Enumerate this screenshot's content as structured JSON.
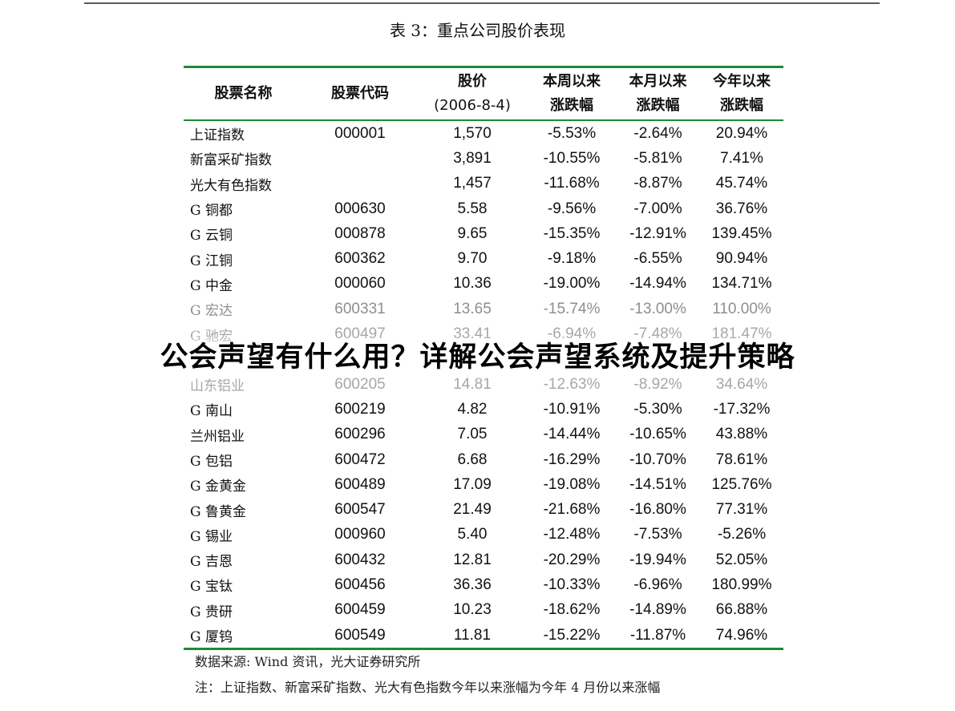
{
  "doc": {
    "table_title": "表 3：重点公司股价表现",
    "headers": {
      "name": "股票名称",
      "code": "股票代码",
      "price_l1": "股价",
      "price_l2": "(2006-8-4)",
      "week_l1": "本周以来",
      "week_l2": "涨跌幅",
      "month_l1": "本月以来",
      "month_l2": "涨跌幅",
      "year_l1": "今年以来",
      "year_l2": "涨跌幅"
    },
    "rows": [
      [
        "上证指数",
        "000001",
        "1,570",
        "-5.53%",
        "-2.64%",
        "20.94%"
      ],
      [
        "新富采矿指数",
        "",
        "3,891",
        "-10.55%",
        "-5.81%",
        "7.41%"
      ],
      [
        "光大有色指数",
        "",
        "1,457",
        "-11.68%",
        "-8.87%",
        "45.74%"
      ],
      [
        "G 铜都",
        "000630",
        "5.58",
        "-9.56%",
        "-7.00%",
        "36.76%"
      ],
      [
        "G 云铜",
        "000878",
        "9.65",
        "-15.35%",
        "-12.91%",
        "139.45%"
      ],
      [
        "G 江铜",
        "600362",
        "9.70",
        "-9.18%",
        "-6.55%",
        "90.94%"
      ],
      [
        "G 中金",
        "000060",
        "10.36",
        "-19.00%",
        "-14.94%",
        "134.71%"
      ],
      [
        "G 宏达",
        "600331",
        "13.65",
        "-15.74%",
        "-13.00%",
        "110.00%"
      ],
      [
        "G 驰宏",
        "600497",
        "33.41",
        "-6.94%",
        "-7.48%",
        "181.47%"
      ],
      [
        "",
        "",
        "",
        "",
        "",
        ""
      ],
      [
        "山东铝业",
        "600205",
        "14.81",
        "-12.63%",
        "-8.92%",
        "34.64%"
      ],
      [
        "G 南山",
        "600219",
        "4.82",
        "-10.91%",
        "-5.30%",
        "-17.32%"
      ],
      [
        "兰州铝业",
        "600296",
        "7.05",
        "-14.44%",
        "-10.65%",
        "43.88%"
      ],
      [
        "G 包铝",
        "600472",
        "6.68",
        "-16.29%",
        "-10.70%",
        "78.61%"
      ],
      [
        "G 金黄金",
        "600489",
        "17.09",
        "-19.08%",
        "-14.51%",
        "125.76%"
      ],
      [
        "G 鲁黄金",
        "600547",
        "21.49",
        "-21.68%",
        "-16.80%",
        "77.31%"
      ],
      [
        "G 锡业",
        "000960",
        "5.40",
        "-12.48%",
        "-7.53%",
        "-5.26%"
      ],
      [
        "G 吉恩",
        "600432",
        "12.81",
        "-20.29%",
        "-19.94%",
        "52.05%"
      ],
      [
        "G 宝钛",
        "600456",
        "36.36",
        "-10.33%",
        "-6.96%",
        "180.99%"
      ],
      [
        "G 贵研",
        "600459",
        "10.23",
        "-18.62%",
        "-14.89%",
        "66.88%"
      ],
      [
        "G 厦钨",
        "600549",
        "11.81",
        "-15.22%",
        "-11.87%",
        "74.96%"
      ]
    ],
    "source": "数据来源: Wind 资讯，光大证券研究所",
    "note": "注：上证指数、新富采矿指数、光大有色指数今年以来涨幅为今年 4 月份以来涨幅"
  },
  "overlay_title": "公会声望有什么用？详解公会声望系统及提升策略",
  "colors": {
    "rule_green": "#1f8a34",
    "top_rule": "#5a5a5a",
    "faded_text": "#8e8e8e"
  }
}
